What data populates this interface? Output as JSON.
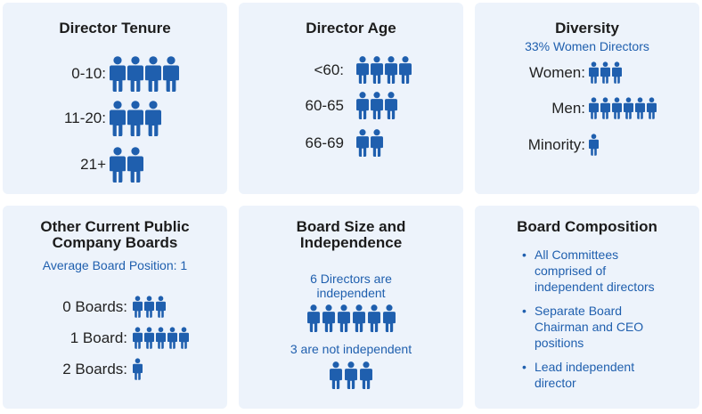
{
  "colors": {
    "accent": "#1f5fae",
    "icon": "#1f5fae",
    "card_bg": "#edf3fb"
  },
  "tenure": {
    "title": "Director Tenure",
    "rows": [
      {
        "label": "0-10:",
        "count": 4
      },
      {
        "label": "11-20:",
        "count": 3
      },
      {
        "label": "21+",
        "count": 2
      }
    ]
  },
  "age": {
    "title": "Director Age",
    "rows": [
      {
        "label": "<60:",
        "count": 4
      },
      {
        "label": "60-65",
        "count": 3
      },
      {
        "label": "66-69",
        "count": 2
      }
    ]
  },
  "diversity": {
    "title": "Diversity",
    "subtitle": "33% Women Directors",
    "rows": [
      {
        "label": "Women:",
        "count": 3
      },
      {
        "label": "Men:",
        "count": 6
      },
      {
        "label": "Minority:",
        "count": 1
      }
    ]
  },
  "other_boards": {
    "title_line1": "Other Current Public",
    "title_line2": "Company Boards",
    "subtitle": "Average Board Position: 1",
    "rows": [
      {
        "label": "0 Boards:",
        "count": 3
      },
      {
        "label": "1 Board:",
        "count": 5
      },
      {
        "label": "2 Boards:",
        "count": 1
      }
    ]
  },
  "board_size": {
    "title_line1": "Board Size and",
    "title_line2": "Independence",
    "independent_line1": "6 Directors are",
    "independent_line2": "independent",
    "independent_count": 6,
    "not_independent": "3 are not independent",
    "not_independent_count": 3
  },
  "composition": {
    "title": "Board Composition",
    "bullets": [
      {
        "line1": "All Committees",
        "line2": "comprised of",
        "line3": "independent directors"
      },
      {
        "line1": "Separate Board",
        "line2": "Chairman and CEO",
        "line3": "positions"
      },
      {
        "line1": "Lead independent",
        "line2": "director",
        "line3": ""
      }
    ]
  }
}
